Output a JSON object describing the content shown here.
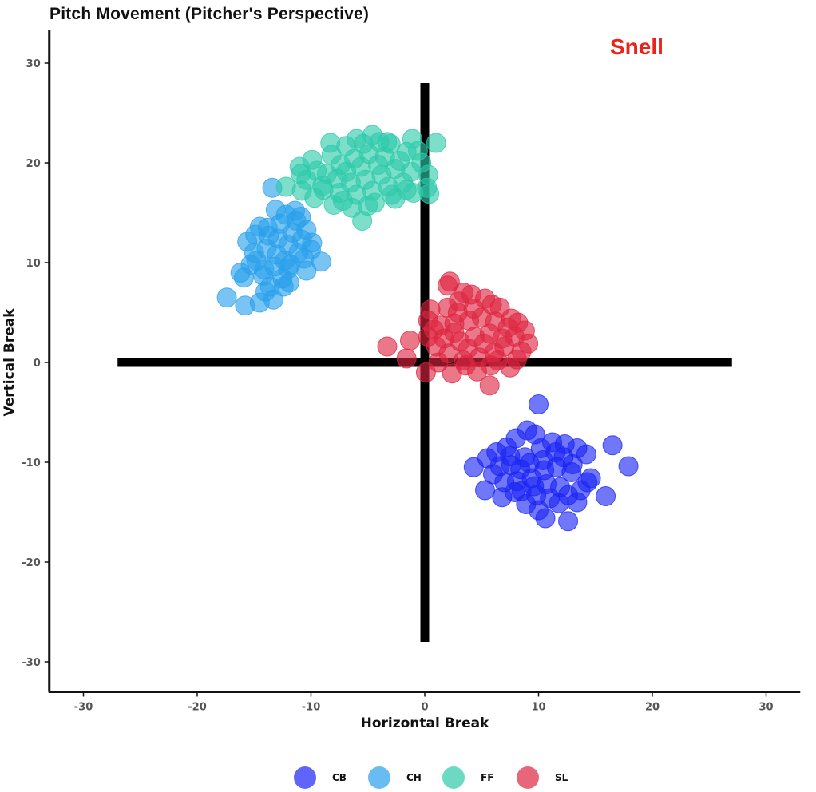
{
  "title": "Pitch Movement (Pitcher's Perspective)",
  "annotation": "Snell",
  "annotation_color": "#e8231b",
  "chart_data": {
    "type": "scatter",
    "title": "Pitch Movement (Pitcher's Perspective)",
    "xlabel": "Horizontal Break",
    "ylabel": "Vertical Break",
    "xlim": [
      -33,
      33
    ],
    "ylim": [
      -33,
      33
    ],
    "xticks": [
      -30,
      -20,
      -10,
      0,
      10,
      20,
      30
    ],
    "yticks": [
      -30,
      -20,
      -10,
      0,
      10,
      20,
      30
    ],
    "grid": false,
    "legend_position": "bottom",
    "crosshair": {
      "horizontal": {
        "y": 0,
        "x_from": -27,
        "x_to": 27
      },
      "vertical": {
        "x": 0,
        "y_from": -28,
        "y_to": 28
      }
    },
    "series": [
      {
        "name": "CB",
        "color": "#1a24f5",
        "points": [
          [
            10,
            -4.2
          ],
          [
            16.5,
            -8.3
          ],
          [
            17.9,
            -10.4
          ],
          [
            15.9,
            -13.4
          ],
          [
            12.6,
            -15.9
          ],
          [
            10.6,
            -15.6
          ],
          [
            4.3,
            -10.5
          ],
          [
            5.3,
            -12.8
          ],
          [
            6.8,
            -13.5
          ],
          [
            8.5,
            -12.9
          ],
          [
            10.0,
            -14.8
          ],
          [
            11.8,
            -14.1
          ],
          [
            13.4,
            -14.0
          ],
          [
            14.3,
            -12.0
          ],
          [
            14.2,
            -9.2
          ],
          [
            13.4,
            -8.6
          ],
          [
            12.3,
            -8.2
          ],
          [
            11.2,
            -8.0
          ],
          [
            9.7,
            -7.2
          ],
          [
            9.0,
            -6.8
          ],
          [
            8.0,
            -7.6
          ],
          [
            7.2,
            -8.5
          ],
          [
            6.3,
            -9.0
          ],
          [
            5.5,
            -9.6
          ],
          [
            6.0,
            -11.2
          ],
          [
            7.6,
            -10.3
          ],
          [
            8.8,
            -9.5
          ],
          [
            10.4,
            -9.8
          ],
          [
            11.6,
            -10.5
          ],
          [
            12.9,
            -11.0
          ],
          [
            9.4,
            -11.6
          ],
          [
            8.1,
            -11.9
          ],
          [
            10.7,
            -12.2
          ],
          [
            11.9,
            -12.5
          ],
          [
            7.0,
            -12.0
          ],
          [
            9.8,
            -13.3
          ],
          [
            11.0,
            -13.6
          ],
          [
            12.2,
            -9.5
          ],
          [
            10.5,
            -10.8
          ],
          [
            9.2,
            -10.1
          ],
          [
            8.4,
            -10.7
          ],
          [
            7.5,
            -9.4
          ],
          [
            6.6,
            -10.4
          ],
          [
            13.7,
            -12.8
          ],
          [
            12.6,
            -13.3
          ],
          [
            8.9,
            -14.2
          ],
          [
            10.2,
            -8.6
          ],
          [
            11.5,
            -9.0
          ],
          [
            9.6,
            -12.4
          ],
          [
            7.9,
            -13.0
          ],
          [
            13.0,
            -10.2
          ],
          [
            14.6,
            -11.6
          ]
        ]
      },
      {
        "name": "CH",
        "color": "#29a0eb",
        "points": [
          [
            -17.4,
            6.5
          ],
          [
            -15.8,
            5.7
          ],
          [
            -14.5,
            6.0
          ],
          [
            -13.3,
            6.3
          ],
          [
            -15.9,
            8.5
          ],
          [
            -16.2,
            9.0
          ],
          [
            -15.6,
            12.1
          ],
          [
            -14.9,
            12.8
          ],
          [
            -13.8,
            13.5
          ],
          [
            -13.1,
            15.3
          ],
          [
            -13.4,
            17.5
          ],
          [
            -12.2,
            14.8
          ],
          [
            -11.3,
            14.2
          ],
          [
            -10.4,
            13.3
          ],
          [
            -9.9,
            12.0
          ],
          [
            -9.1,
            10.1
          ],
          [
            -10.6,
            10.4
          ],
          [
            -11.8,
            9.8
          ],
          [
            -12.5,
            8.4
          ],
          [
            -13.6,
            7.6
          ],
          [
            -14.2,
            8.7
          ],
          [
            -14.8,
            10.2
          ],
          [
            -13.9,
            11.4
          ],
          [
            -12.9,
            12.4
          ],
          [
            -12.0,
            11.8
          ],
          [
            -11.1,
            11.0
          ],
          [
            -12.3,
            10.2
          ],
          [
            -13.2,
            9.6
          ],
          [
            -14.1,
            9.3
          ],
          [
            -15.0,
            11.0
          ],
          [
            -12.7,
            13.9
          ],
          [
            -11.6,
            13.0
          ],
          [
            -10.8,
            12.3
          ],
          [
            -11.9,
            8.0
          ],
          [
            -10.4,
            9.2
          ],
          [
            -14.5,
            13.6
          ],
          [
            -13.0,
            10.8
          ],
          [
            -12.0,
            9.4
          ],
          [
            -15.3,
            9.8
          ],
          [
            -13.7,
            12.7
          ],
          [
            -10.0,
            11.3
          ],
          [
            -12.4,
            7.6
          ],
          [
            -14.0,
            7.1
          ],
          [
            -11.4,
            15.2
          ],
          [
            -10.9,
            14.6
          ]
        ]
      },
      {
        "name": "FF",
        "color": "#2dc9aa",
        "points": [
          [
            -5.5,
            14.2
          ],
          [
            -4.6,
            22.8
          ],
          [
            1.0,
            22.0
          ],
          [
            -1.1,
            22.4
          ],
          [
            -8.3,
            22.0
          ],
          [
            -11.0,
            19.6
          ],
          [
            -12.2,
            17.6
          ],
          [
            -10.8,
            17.2
          ],
          [
            -9.7,
            16.5
          ],
          [
            -8.0,
            15.8
          ],
          [
            -6.4,
            15.5
          ],
          [
            -4.4,
            16.0
          ],
          [
            -2.6,
            16.4
          ],
          [
            -1.0,
            17.0
          ],
          [
            0.2,
            17.5
          ],
          [
            0.3,
            18.8
          ],
          [
            -0.3,
            20.0
          ],
          [
            -1.6,
            21.1
          ],
          [
            -3.0,
            21.9
          ],
          [
            -4.0,
            22.1
          ],
          [
            -5.4,
            21.9
          ],
          [
            -6.9,
            21.7
          ],
          [
            -8.2,
            20.8
          ],
          [
            -9.5,
            19.2
          ],
          [
            -10.4,
            18.3
          ],
          [
            -9.0,
            17.7
          ],
          [
            -7.5,
            17.0
          ],
          [
            -6.0,
            16.8
          ],
          [
            -4.6,
            17.2
          ],
          [
            -3.2,
            17.6
          ],
          [
            -1.9,
            18.0
          ],
          [
            -1.2,
            19.1
          ],
          [
            -2.2,
            20.2
          ],
          [
            -3.5,
            20.6
          ],
          [
            -4.9,
            20.9
          ],
          [
            -6.2,
            20.4
          ],
          [
            -7.4,
            19.8
          ],
          [
            -8.6,
            18.9
          ],
          [
            -7.7,
            18.4
          ],
          [
            -6.5,
            18.0
          ],
          [
            -5.2,
            18.3
          ],
          [
            -3.8,
            18.8
          ],
          [
            -2.6,
            19.4
          ],
          [
            -4.1,
            19.8
          ],
          [
            -5.6,
            19.6
          ],
          [
            -6.9,
            19.1
          ],
          [
            -8.9,
            17.3
          ],
          [
            -9.9,
            20.3
          ],
          [
            -0.6,
            21.2
          ],
          [
            -2.9,
            16.8
          ],
          [
            -5.0,
            15.7
          ],
          [
            -7.2,
            16.2
          ],
          [
            -10.9,
            18.9
          ],
          [
            -1.6,
            17.3
          ],
          [
            -3.3,
            22.1
          ],
          [
            -6.0,
            22.4
          ],
          [
            0.4,
            16.9
          ]
        ]
      },
      {
        "name": "SL",
        "color": "#de2541",
        "points": [
          [
            2.2,
            8.1
          ],
          [
            2.0,
            7.7
          ],
          [
            3.4,
            7.0
          ],
          [
            -3.3,
            1.6
          ],
          [
            -1.3,
            2.2
          ],
          [
            -1.6,
            0.4
          ],
          [
            0.1,
            -1.0
          ],
          [
            2.4,
            -1.1
          ],
          [
            4.6,
            -0.9
          ],
          [
            5.8,
            -0.3
          ],
          [
            5.7,
            -2.3
          ],
          [
            7.5,
            -0.5
          ],
          [
            8.1,
            0.3
          ],
          [
            9.1,
            1.9
          ],
          [
            8.8,
            3.2
          ],
          [
            8.2,
            4.0
          ],
          [
            6.6,
            5.5
          ],
          [
            5.3,
            6.4
          ],
          [
            4.1,
            6.8
          ],
          [
            3.0,
            6.1
          ],
          [
            2.0,
            5.5
          ],
          [
            0.5,
            5.3
          ],
          [
            0.3,
            4.2
          ],
          [
            1.4,
            3.7
          ],
          [
            2.6,
            3.9
          ],
          [
            3.9,
            4.2
          ],
          [
            5.0,
            4.5
          ],
          [
            6.2,
            4.1
          ],
          [
            7.3,
            3.5
          ],
          [
            7.9,
            2.6
          ],
          [
            7.0,
            1.6
          ],
          [
            6.1,
            1.0
          ],
          [
            4.8,
            0.5
          ],
          [
            3.4,
            0.2
          ],
          [
            2.1,
            0.9
          ],
          [
            1.0,
            1.6
          ],
          [
            0.3,
            2.6
          ],
          [
            1.7,
            2.4
          ],
          [
            3.1,
            2.1
          ],
          [
            4.4,
            2.6
          ],
          [
            5.7,
            2.9
          ],
          [
            6.8,
            2.4
          ],
          [
            3.8,
            1.4
          ],
          [
            2.6,
            3.0
          ],
          [
            5.2,
            1.9
          ],
          [
            6.4,
            0.2
          ],
          [
            3.6,
            -0.3
          ],
          [
            1.2,
            0.0
          ],
          [
            4.3,
            5.4
          ],
          [
            7.6,
            4.4
          ],
          [
            2.9,
            5.0
          ],
          [
            0.8,
            3.3
          ],
          [
            5.9,
            5.8
          ],
          [
            8.5,
            1.1
          ]
        ]
      }
    ]
  }
}
